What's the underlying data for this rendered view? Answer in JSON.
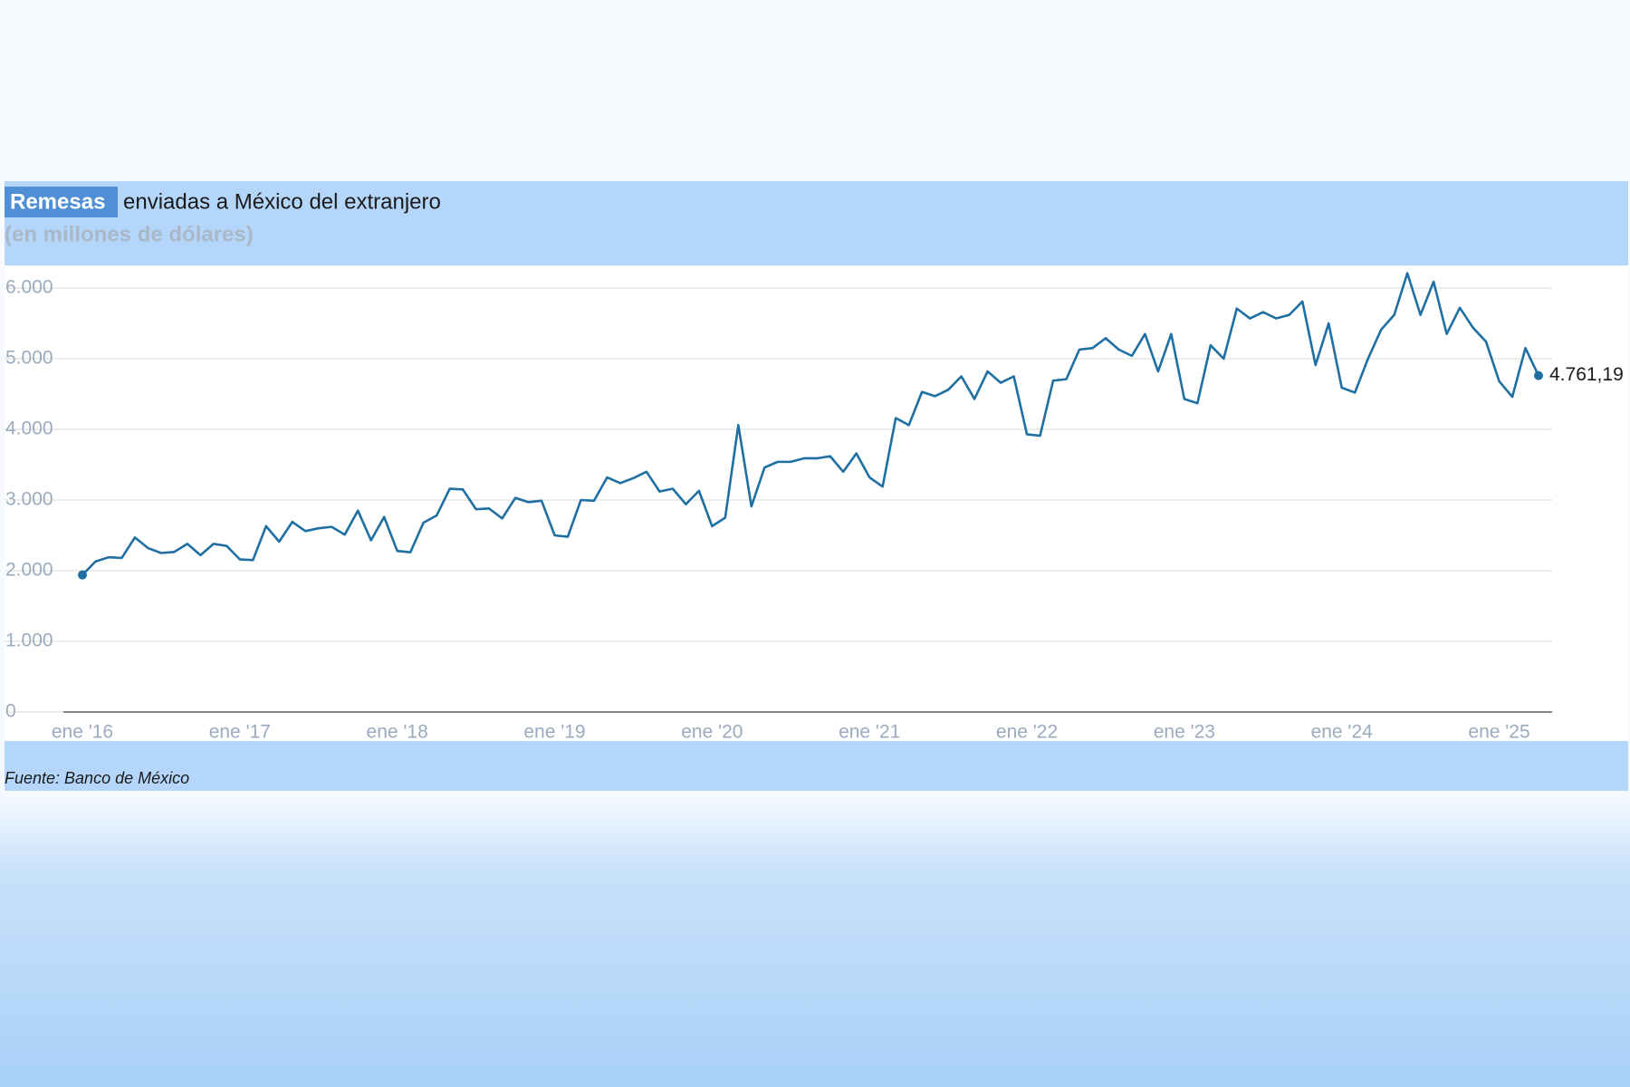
{
  "chart_data": {
    "type": "line",
    "title_highlight": "Remesas",
    "title": "enviadas a México del extranjero",
    "subtitle": "(en millones de dólares)",
    "source": "Fuente: Banco de México",
    "categories": [
      "ene '16",
      null,
      null,
      null,
      null,
      null,
      null,
      null,
      null,
      null,
      null,
      null,
      "ene '17",
      null,
      null,
      null,
      null,
      null,
      null,
      null,
      null,
      null,
      null,
      null,
      "ene '18",
      null,
      null,
      null,
      null,
      null,
      null,
      null,
      null,
      null,
      null,
      null,
      "ene '19",
      null,
      null,
      null,
      null,
      null,
      null,
      null,
      null,
      null,
      null,
      null,
      "ene '20",
      null,
      null,
      null,
      null,
      null,
      null,
      null,
      null,
      null,
      null,
      null,
      "ene '21",
      null,
      null,
      null,
      null,
      null,
      null,
      null,
      null,
      null,
      null,
      null,
      "ene '22",
      null,
      null,
      null,
      null,
      null,
      null,
      null,
      null,
      null,
      null,
      null,
      "ene '23",
      null,
      null,
      null,
      null,
      null,
      null,
      null,
      null,
      null,
      null,
      null,
      "ene '24",
      null,
      null,
      null,
      null,
      null,
      null,
      null,
      null,
      null,
      null,
      null,
      "ene '25",
      null,
      null,
      null
    ],
    "series": [
      {
        "name": "Remesas",
        "color": "#1f6fa3",
        "values": [
          1940,
          2130,
          2190,
          2180,
          2470,
          2320,
          2250,
          2265,
          2380,
          2220,
          2380,
          2350,
          2160,
          2150,
          2630,
          2410,
          2690,
          2560,
          2600,
          2620,
          2510,
          2850,
          2430,
          2760,
          2280,
          2260,
          2680,
          2780,
          3160,
          3150,
          2870,
          2880,
          2740,
          3030,
          2970,
          2990,
          2500,
          2480,
          3000,
          2990,
          3320,
          3240,
          3310,
          3400,
          3120,
          3160,
          2940,
          3130,
          2630,
          2750,
          4060,
          2910,
          3460,
          3540,
          3540,
          3590,
          3590,
          3620,
          3400,
          3660,
          3320,
          3190,
          4160,
          4060,
          4530,
          4470,
          4560,
          4750,
          4430,
          4820,
          4660,
          4750,
          3930,
          3910,
          4690,
          4710,
          5130,
          5150,
          5290,
          5130,
          5040,
          5350,
          4820,
          5350,
          4430,
          4370,
          5190,
          5000,
          5710,
          5570,
          5660,
          5570,
          5620,
          5810,
          4910,
          5500,
          4590,
          4520,
          5000,
          5410,
          5620,
          6210,
          5620,
          6090,
          5350,
          5720,
          5440,
          5240,
          4680,
          4460,
          5150,
          4761.19
        ],
        "value_labels": [
          null,
          null,
          null,
          null,
          null,
          null,
          null,
          null,
          null,
          null,
          null,
          null,
          null,
          null,
          null,
          null,
          null,
          null,
          null,
          null,
          null,
          null,
          null,
          null,
          null,
          null,
          null,
          null,
          null,
          null,
          null,
          null,
          null,
          null,
          null,
          null,
          null,
          null,
          null,
          null,
          null,
          null,
          null,
          null,
          null,
          null,
          null,
          null,
          null,
          null,
          null,
          null,
          null,
          null,
          null,
          null,
          null,
          null,
          null,
          null,
          null,
          null,
          null,
          null,
          null,
          null,
          null,
          null,
          null,
          null,
          null,
          null,
          null,
          null,
          null,
          null,
          null,
          null,
          null,
          null,
          null,
          null,
          null,
          null,
          null,
          null,
          null,
          null,
          null,
          null,
          null,
          null,
          null,
          null,
          null,
          null,
          null,
          null,
          null,
          null,
          null,
          null,
          null,
          null,
          null,
          null,
          null,
          null,
          null,
          null,
          null,
          "4.761,19"
        ]
      }
    ],
    "ylim": [
      0,
      6000
    ],
    "yticks": [
      0,
      {
        "value": 1000,
        "label": "1.000"
      },
      {
        "value": 2000,
        "label": "2.000"
      },
      {
        "value": 3000,
        "label": "3.000"
      },
      {
        "value": 4000,
        "label": "4.000"
      },
      {
        "value": 5000,
        "label": "5.000"
      },
      {
        "value": 6000,
        "label": "6.000"
      }
    ],
    "grid": true
  }
}
